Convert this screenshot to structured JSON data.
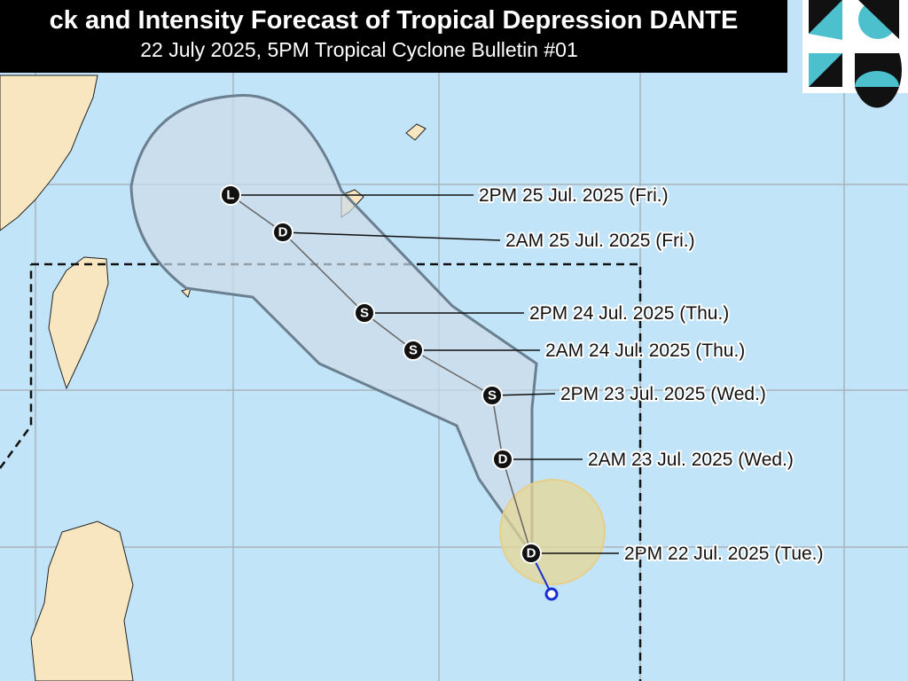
{
  "header": {
    "title": "ck and Intensity Forecast of Tropical Depression DANTE",
    "subtitle": "22 July 2025, 5PM Tropical Cyclone Bulletin #01"
  },
  "track": {
    "points": [
      {
        "marker": "L",
        "label": "2PM 25 Jul. 2025 (Fri.)"
      },
      {
        "marker": "D",
        "label": "2AM 25 Jul. 2025 (Fri.)"
      },
      {
        "marker": "S",
        "label": "2PM 24 Jul. 2025 (Thu.)"
      },
      {
        "marker": "S",
        "label": "2AM 24 Jul. 2025 (Thu.)"
      },
      {
        "marker": "S",
        "label": "2PM 23 Jul. 2025 (Wed.)"
      },
      {
        "marker": "D",
        "label": "2AM 23 Jul. 2025 (Wed.)"
      },
      {
        "marker": "D",
        "label": "2PM 22 Jul. 2025 (Tue.)"
      }
    ]
  }
}
